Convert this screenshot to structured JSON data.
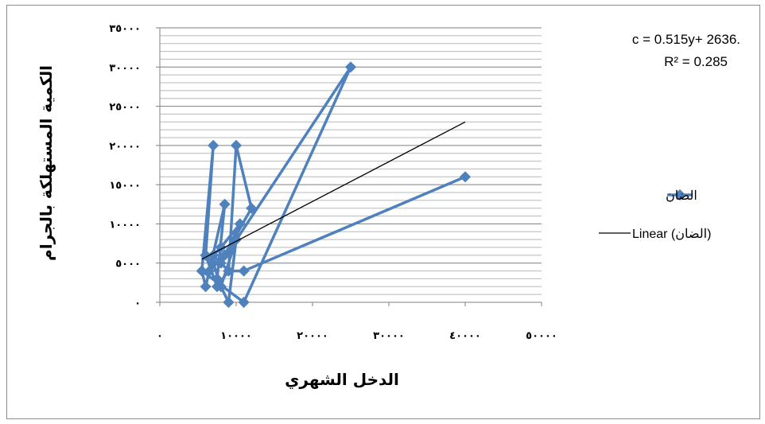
{
  "chart_data": {
    "type": "scatter",
    "xlabel": "الدخل الشهري",
    "ylabel": "الكمية المستهلكة بالجرام",
    "xlim": [
      0,
      50000
    ],
    "ylim": [
      0,
      35000
    ],
    "x_ticks": [
      0,
      10000,
      20000,
      30000,
      40000,
      50000
    ],
    "x_tick_labels": [
      "٠",
      "١٠٠٠٠",
      "٢٠٠٠٠",
      "٣٠٠٠٠",
      "٤٠٠٠٠",
      "٥٠٠٠٠"
    ],
    "y_ticks": [
      0,
      5000,
      10000,
      15000,
      20000,
      25000,
      30000,
      35000
    ],
    "y_tick_labels": [
      "٠",
      "٥٠٠٠",
      "١٠٠٠٠",
      "١٥٠٠٠",
      "٢٠٠٠٠",
      "٢٥٠٠٠",
      "٣٠٠٠٠",
      "٣٥٠٠٠"
    ],
    "minor_grid_step": 1000,
    "grid": true,
    "legend_position": "right",
    "series": [
      {
        "name": "الضان",
        "color": "#4F81BD",
        "marker": "diamond",
        "x": [
          6000,
          7000,
          5500,
          6000,
          8500,
          7500,
          9000,
          10000,
          8000,
          7000,
          6000,
          7500,
          9000,
          10000,
          12000,
          8500,
          6500,
          5500,
          11000,
          25000,
          8000,
          10500,
          8000,
          7000,
          9000,
          11000,
          40000
        ],
        "y": [
          6000,
          20000,
          4000,
          2000,
          12500,
          3000,
          0,
          8000,
          2000,
          5000,
          6000,
          2000,
          4000,
          20000,
          12000,
          6000,
          4000,
          4000,
          0,
          30000,
          5000,
          10000,
          7000,
          6000,
          4000,
          4000,
          16000
        ]
      }
    ],
    "trendline": {
      "name": "Linear (الضان)",
      "color": "#000000",
      "x": [
        5500,
        40000
      ],
      "y": [
        5500,
        23000
      ]
    },
    "annotation": [
      "c = 0.515y+ 2636.",
      "R² = 0.285"
    ]
  }
}
